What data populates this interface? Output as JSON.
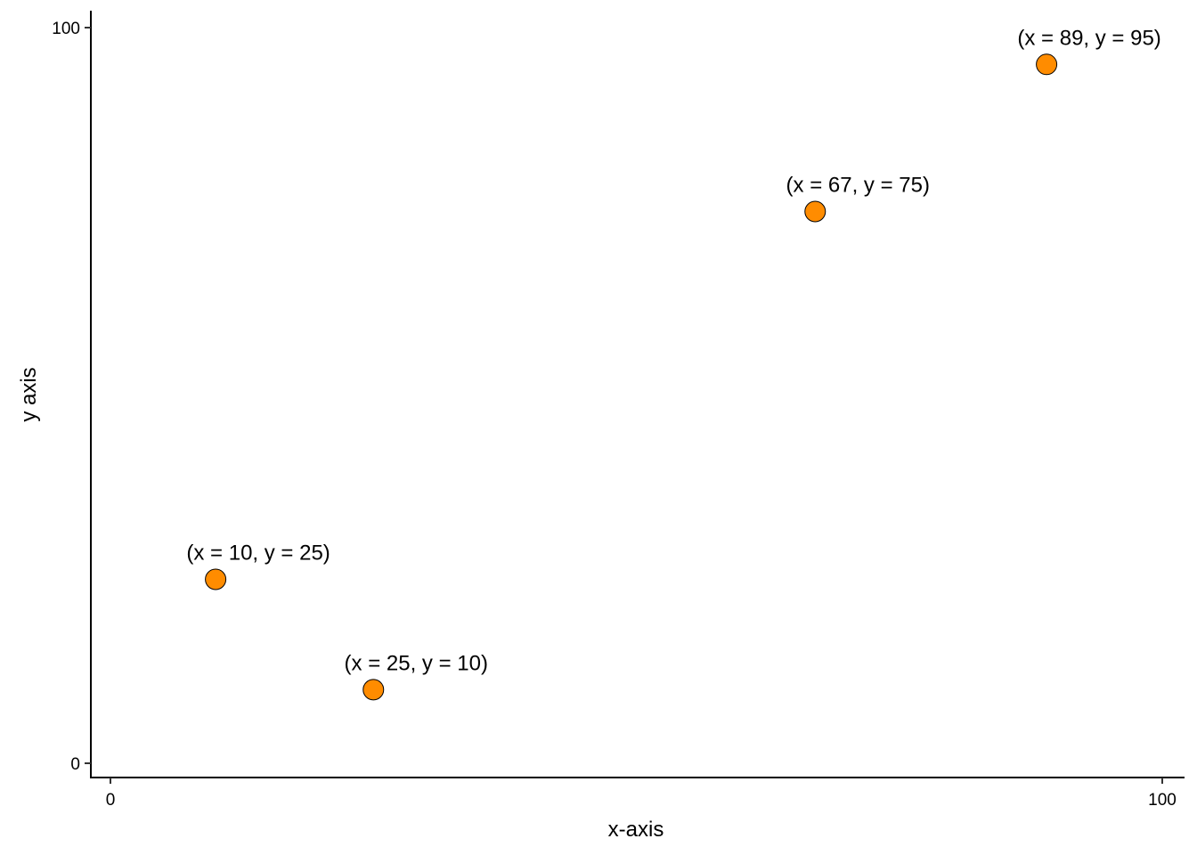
{
  "chart_data": {
    "type": "scatter",
    "title": "",
    "xlabel": "x-axis",
    "ylabel": "y axis",
    "xlim": [
      0,
      100
    ],
    "ylim": [
      0,
      100
    ],
    "xticks": [
      0,
      100
    ],
    "yticks": [
      0,
      100
    ],
    "xtick_labels": [
      "0",
      "100"
    ],
    "ytick_labels": [
      "0",
      "100"
    ],
    "grid": false,
    "legend": "none",
    "point_color": "#FF8C00",
    "point_outline": "#000000",
    "points": [
      {
        "x": 10,
        "y": 25,
        "label": "(x = 10, y = 25)"
      },
      {
        "x": 25,
        "y": 10,
        "label": "(x = 25, y = 10)"
      },
      {
        "x": 67,
        "y": 75,
        "label": "(x = 67, y = 75)"
      },
      {
        "x": 89,
        "y": 95,
        "label": "(x = 89, y = 95)"
      }
    ]
  }
}
